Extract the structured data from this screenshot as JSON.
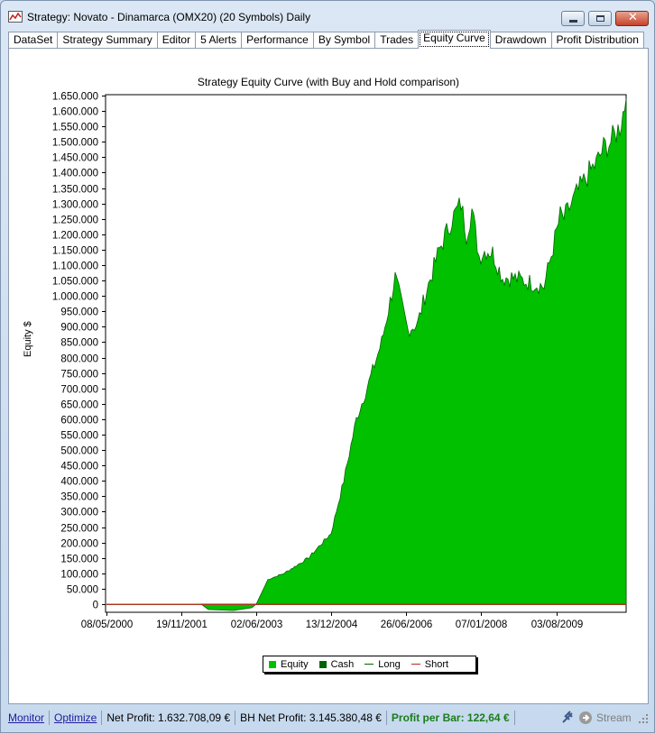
{
  "window": {
    "title": "Strategy: Novato - Dinamarca (OMX20) (20 Symbols) Daily",
    "close_glyph": "✕"
  },
  "tabs": [
    {
      "label": "DataSet"
    },
    {
      "label": "Strategy Summary"
    },
    {
      "label": "Editor"
    },
    {
      "label": "5 Alerts"
    },
    {
      "label": "Performance"
    },
    {
      "label": "By Symbol"
    },
    {
      "label": "Trades"
    },
    {
      "label": "Equity Curve",
      "active": true
    },
    {
      "label": "Drawdown"
    },
    {
      "label": "Profit Distribution"
    }
  ],
  "chart_data": {
    "type": "area",
    "title": "Strategy Equity Curve (with Buy and Hold comparison)",
    "ylabel": "Equity $",
    "ylim": [
      -20000,
      1650000
    ],
    "yticks": [
      "1.650.000",
      "1.600.000",
      "1.550.000",
      "1.500.000",
      "1.450.000",
      "1.400.000",
      "1.350.000",
      "1.300.000",
      "1.250.000",
      "1.200.000",
      "1.150.000",
      "1.100.000",
      "1.050.000",
      "1.000.000",
      "950.000",
      "900.000",
      "850.000",
      "800.000",
      "750.000",
      "700.000",
      "650.000",
      "600.000",
      "550.000",
      "500.000",
      "450.000",
      "400.000",
      "350.000",
      "300.000",
      "250.000",
      "200.000",
      "150.000",
      "100.000",
      "50.000",
      "0"
    ],
    "xticks": [
      "08/05/2000",
      "19/11/2001",
      "02/06/2003",
      "13/12/2004",
      "26/06/2006",
      "07/01/2008",
      "03/08/2009"
    ],
    "legend": [
      "Equity",
      "Cash",
      "Long",
      "Short"
    ],
    "colors": {
      "equity": "#00c000",
      "equity_line": "#006400",
      "cash": "#006400",
      "long": "#006400",
      "short": "#b03018"
    },
    "series": [
      {
        "name": "Equity",
        "x": [
          "08/05/2000",
          "19/11/2001",
          "2002-06",
          "2002-12",
          "02/06/2003",
          "2003-07",
          "2003-12",
          "2004-06",
          "13/12/2004",
          "2005-03",
          "2005-06",
          "2005-09",
          "2005-11",
          "2006-01",
          "2006-03",
          "2006-05",
          "26/06/2006",
          "2006-09",
          "2006-12",
          "2007-03",
          "2007-05",
          "2007-07",
          "2007-09",
          "2007-11",
          "07/01/2008",
          "2008-03",
          "2008-06",
          "2008-09",
          "2008-12",
          "2009-03",
          "2009-05",
          "03/08/2009",
          "2009-10",
          "2009-12",
          "2010-02",
          "2010-04",
          "2010-06",
          "2010-08",
          "2010-10"
        ],
        "values": [
          0,
          0,
          -20000,
          -20000,
          0,
          80000,
          100000,
          150000,
          230000,
          400000,
          600000,
          720000,
          850000,
          1060000,
          890000,
          910000,
          1000000,
          1150000,
          1250000,
          1300000,
          1200000,
          1280000,
          1130000,
          1150000,
          1140000,
          1060000,
          1060000,
          1050000,
          1040000,
          1030000,
          1260000,
          1250000,
          1330000,
          1400000,
          1430000,
          1480000,
          1500000,
          1550000,
          1640000
        ]
      },
      {
        "name": "Short",
        "values": [
          0
        ]
      }
    ]
  },
  "status": {
    "monitor": "Monitor",
    "optimize": "Optimize",
    "net_profit": "Net Profit: 1.632.708,09 €",
    "bh_net_profit": "BH Net Profit: 3.145.380,48 €",
    "profit_per_bar": "Profit per Bar: 122,64 €",
    "stream": "Stream"
  }
}
